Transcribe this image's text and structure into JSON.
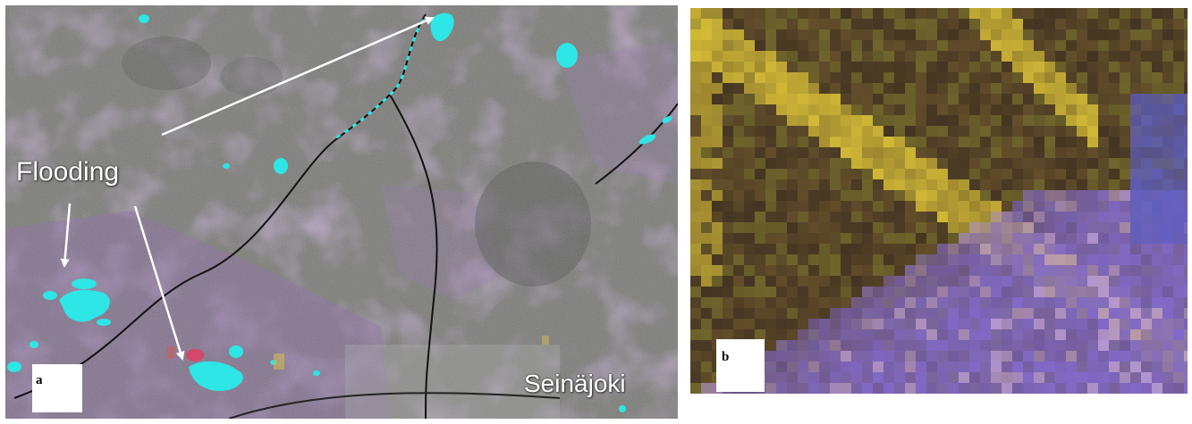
{
  "figure": {
    "panel_a": {
      "tag": "a",
      "annotation": "Flooding",
      "place_name": "Seinäjoki"
    },
    "panel_b": {
      "tag": "b"
    }
  },
  "colors": {
    "flood_water": "#2ee6e6",
    "sar_gray": "#7a7a78",
    "field_purple": "#9a72b8",
    "vegetation_yellow": "#e0c93a",
    "vegetation_brown": "#6a5530",
    "urban_blue": "#7f6fd0"
  }
}
